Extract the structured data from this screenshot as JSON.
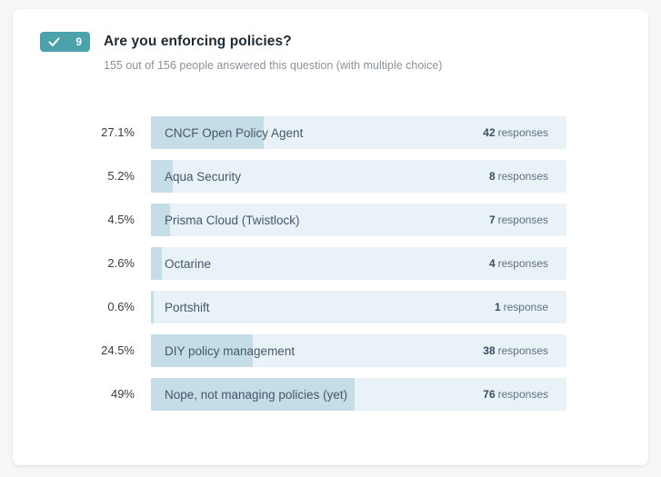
{
  "header": {
    "badge": {
      "number": "9",
      "color": "#4ba2ab",
      "icon": "check-icon"
    },
    "title": "Are you enforcing policies?",
    "subtitle": "155 out of 156 people answered this question (with multiple choice)"
  },
  "chart_data": {
    "type": "bar",
    "orientation": "horizontal",
    "title": "Are you enforcing policies?",
    "categories": [
      "CNCF Open Policy Agent",
      "Aqua Security",
      "Prisma Cloud (Twistlock)",
      "Octarine",
      "Portshift",
      "DIY policy management",
      "Nope, not managing policies (yet)"
    ],
    "values": [
      27.1,
      5.2,
      4.5,
      2.6,
      0.6,
      24.5,
      49
    ],
    "counts": [
      42,
      8,
      7,
      4,
      1,
      38,
      76
    ],
    "xlim": [
      0,
      100
    ],
    "bar_color": "#c4dde6",
    "track_color": "#e9f2f6",
    "grid": false,
    "legend": false
  },
  "rows": [
    {
      "pct": "27.1%",
      "label": "CNCF Open Policy Agent",
      "count": "42",
      "unit": "responses",
      "fill": 27.1
    },
    {
      "pct": "5.2%",
      "label": "Aqua Security",
      "count": "8",
      "unit": "responses",
      "fill": 5.2
    },
    {
      "pct": "4.5%",
      "label": "Prisma Cloud (Twistlock)",
      "count": "7",
      "unit": "responses",
      "fill": 4.5
    },
    {
      "pct": "2.6%",
      "label": "Octarine",
      "count": "4",
      "unit": "responses",
      "fill": 2.6
    },
    {
      "pct": "0.6%",
      "label": "Portshift",
      "count": "1",
      "unit": "response",
      "fill": 0.6
    },
    {
      "pct": "24.5%",
      "label": "DIY policy management",
      "count": "38",
      "unit": "responses",
      "fill": 24.5
    },
    {
      "pct": "49%",
      "label": "Nope, not managing policies (yet)",
      "count": "76",
      "unit": "responses",
      "fill": 49
    }
  ]
}
